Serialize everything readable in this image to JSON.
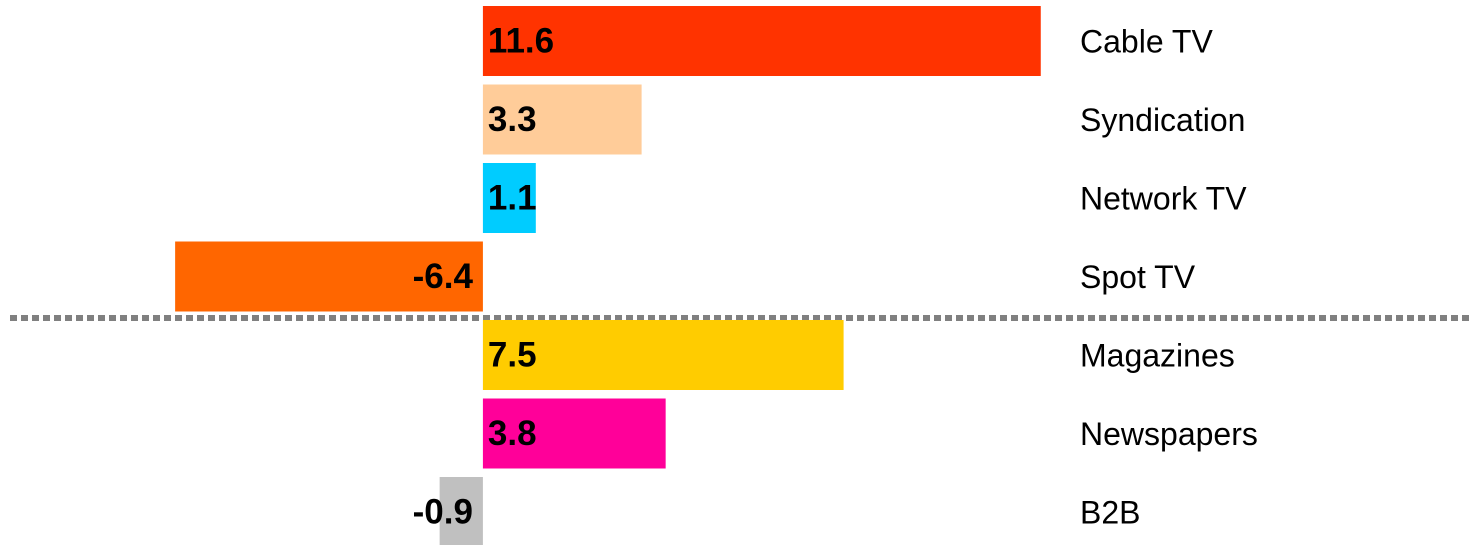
{
  "chart_data": {
    "type": "bar",
    "orientation": "horizontal",
    "categories": [
      "Cable TV",
      "Syndication",
      "Network TV",
      "Spot TV",
      "Magazines",
      "Newspapers",
      "B2B"
    ],
    "values": [
      11.6,
      3.3,
      1.1,
      -6.4,
      7.5,
      3.8,
      -0.9
    ],
    "colors": [
      "#ff3300",
      "#ffcc99",
      "#00ccff",
      "#ff6600",
      "#ffcc00",
      "#ff0099",
      "#c0c0c0"
    ],
    "xlim": [
      -10,
      12
    ]
  }
}
